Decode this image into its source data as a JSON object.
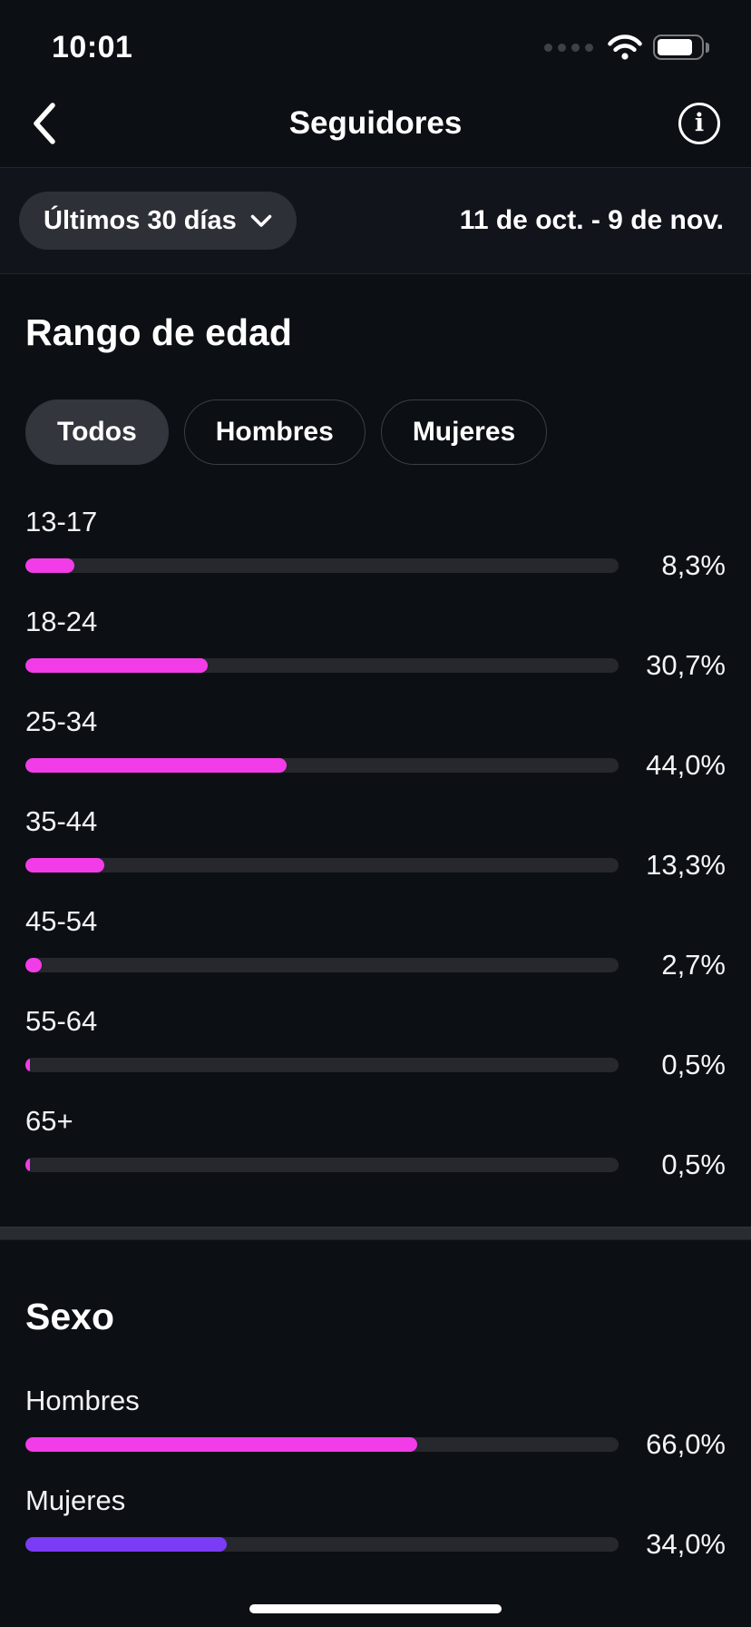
{
  "status_bar": {
    "time": "10:01"
  },
  "header": {
    "title": "Seguidores"
  },
  "filter_bar": {
    "period_label": "Últimos 30 días",
    "date_range": "11 de oct. - 9 de nov."
  },
  "age_section": {
    "title": "Rango de edad",
    "tabs": [
      {
        "label": "Todos",
        "selected": true
      },
      {
        "label": "Hombres",
        "selected": false
      },
      {
        "label": "Mujeres",
        "selected": false
      }
    ],
    "rows": [
      {
        "label": "13-17",
        "value": 8.3,
        "display": "8,3%",
        "color": "#f23ce8"
      },
      {
        "label": "18-24",
        "value": 30.7,
        "display": "30,7%",
        "color": "#f23ce8"
      },
      {
        "label": "25-34",
        "value": 44.0,
        "display": "44,0%",
        "color": "#f23ce8"
      },
      {
        "label": "35-44",
        "value": 13.3,
        "display": "13,3%",
        "color": "#f23ce8"
      },
      {
        "label": "45-54",
        "value": 2.7,
        "display": "2,7%",
        "color": "#f23ce8"
      },
      {
        "label": "55-64",
        "value": 0.5,
        "display": "0,5%",
        "color": "#f23ce8"
      },
      {
        "label": "65+",
        "value": 0.5,
        "display": "0,5%",
        "color": "#f23ce8"
      }
    ]
  },
  "gender_section": {
    "title": "Sexo",
    "rows": [
      {
        "label": "Hombres",
        "value": 66.0,
        "display": "66,0%",
        "color": "#f23ce8"
      },
      {
        "label": "Mujeres",
        "value": 34.0,
        "display": "34,0%",
        "color": "#7a3cf5"
      }
    ]
  },
  "colors": {
    "background": "#0c0f13",
    "bar_track": "#26282d",
    "accent_magenta": "#f23ce8",
    "accent_purple": "#7a3cf5"
  },
  "chart_data": [
    {
      "type": "bar",
      "orientation": "horizontal",
      "title": "Rango de edad",
      "categories": [
        "13-17",
        "18-24",
        "25-34",
        "35-44",
        "45-54",
        "55-64",
        "65+"
      ],
      "values": [
        8.3,
        30.7,
        44.0,
        13.3,
        2.7,
        0.5,
        0.5
      ],
      "unit": "%",
      "value_labels": [
        "8,3%",
        "30,7%",
        "44,0%",
        "13,3%",
        "2,7%",
        "0,5%",
        "0,5%"
      ],
      "xlim": [
        0,
        100
      ],
      "grid": false,
      "legend": false
    },
    {
      "type": "bar",
      "orientation": "horizontal",
      "title": "Sexo",
      "categories": [
        "Hombres",
        "Mujeres"
      ],
      "values": [
        66.0,
        34.0
      ],
      "unit": "%",
      "value_labels": [
        "66,0%",
        "34,0%"
      ],
      "xlim": [
        0,
        100
      ],
      "grid": false,
      "legend": false
    }
  ]
}
